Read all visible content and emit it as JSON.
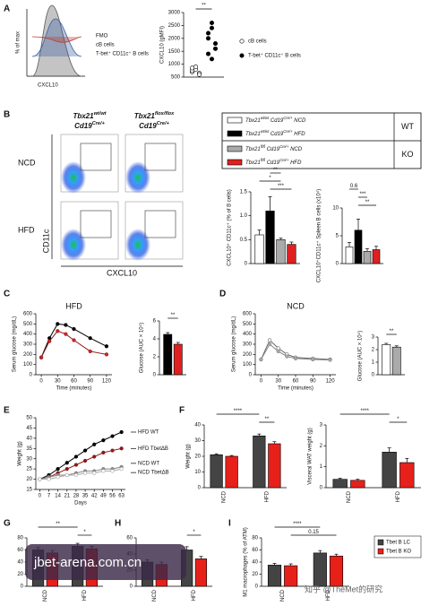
{
  "watermarks": [
    "jbet-arena.com.cn",
    "知乎 @TheMet的研究"
  ],
  "chart_data": [
    {
      "type": "density",
      "panel": "A",
      "ylabel": "% of max",
      "xlabel": "CXCL10",
      "series": [
        {
          "name": "FMO",
          "color": "#555555"
        },
        {
          "name": "cB cells",
          "color": "#3a5fa0"
        },
        {
          "name": "T-bet⁺ CD11c⁺ B cells",
          "color": "#c0392b"
        }
      ]
    },
    {
      "type": "dot",
      "ylabel": "CXCL10 (gMFI)",
      "ylim": [
        500,
        3000
      ],
      "yticks": [
        500,
        1000,
        1500,
        2000,
        2500,
        3000
      ],
      "annotations": [
        "**"
      ],
      "series": [
        {
          "name": "cB cells",
          "color": "#ffffff",
          "values": [
            700,
            800,
            650,
            750,
            900,
            600,
            850
          ]
        },
        {
          "name": "T-bet⁺ CD11c⁺ B cells",
          "color": "#000000",
          "values": [
            1400,
            2400,
            1800,
            2200,
            2600,
            1600,
            2000,
            1200
          ]
        }
      ]
    },
    {
      "type": "flow",
      "panel": "B",
      "xlabel": "CXCL10",
      "ylabel": "CD11c",
      "rows": [
        "NCD",
        "HFD"
      ],
      "columns": [
        [
          "Tbx21",
          "wt/wt",
          "",
          "",
          "Cd19",
          "Cre/+"
        ],
        [
          "Tbx21",
          "flox/flox",
          "",
          "",
          "Cd19",
          "Cre/+"
        ]
      ]
    },
    {
      "type": "legend",
      "groups": [
        "WT",
        "KO"
      ],
      "entries": [
        {
          "parts": [
            "Tbx21",
            "wt/wt",
            " Cd19",
            "Cre/+",
            " NCD"
          ],
          "color": "#ffffff"
        },
        {
          "parts": [
            "Tbx21",
            "wt/wt",
            " Cd19",
            "Cre/+",
            " HFD"
          ],
          "color": "#000000"
        },
        {
          "parts": [
            "Tbx21",
            "fl/fl",
            " Cd19",
            "Cre/+",
            " NCD"
          ],
          "color": "#aaaaaa"
        },
        {
          "parts": [
            "Tbx21",
            "fl/fl",
            " Cd19",
            "Cre/+",
            " HFD"
          ],
          "color": "#e02020"
        }
      ]
    },
    {
      "type": "bar",
      "ylabel": "CXCL10⁺ CD11c⁺ (% of B cells)",
      "ylim": [
        0,
        1.5
      ],
      "yticks": [
        0,
        0.5,
        {
          "value": 1,
          "label": "1.0"
        },
        1.5
      ],
      "values": [
        0.6,
        1.1,
        0.5,
        0.4
      ],
      "errors": [
        0.1,
        0.3,
        0.03,
        0.05
      ],
      "colors": [
        "#ffffff",
        "#000000",
        "#aaaaaa",
        "#e02020"
      ],
      "annotations": [
        "*",
        "**",
        "***"
      ]
    },
    {
      "type": "bar",
      "ylabel": "CXCL10⁺CD11c⁺ Spleen B cells (x10⁴)",
      "ylim": [
        0,
        10
      ],
      "yticks": [
        0,
        5,
        10
      ],
      "values": [
        3,
        6,
        2.2,
        2.5
      ],
      "errors": [
        0.8,
        2,
        0.5,
        0.6
      ],
      "colors": [
        "#ffffff",
        "#000000",
        "#aaaaaa",
        "#e02020"
      ],
      "annotations": [
        "0.6",
        "***",
        "**"
      ]
    },
    {
      "type": "line",
      "panel": "C",
      "title": "HFD",
      "ylabel": "Serum glucose (mg/dL)",
      "xlabel": "Time (minutes)",
      "x": [
        0,
        15,
        30,
        45,
        60,
        90,
        120
      ],
      "xlim": [
        -10,
        130
      ],
      "xticks": [
        0,
        30,
        60,
        90,
        120
      ],
      "ylim": [
        0,
        600
      ],
      "yticks": [
        0,
        100,
        200,
        300,
        400,
        500,
        600
      ],
      "series": [
        {
          "name": "WT",
          "color": "#000000",
          "line": "#000000",
          "values": [
            170,
            360,
            500,
            490,
            450,
            360,
            280
          ]
        },
        {
          "name": "KO",
          "color": "#e02020",
          "line": "#8b1a1a",
          "values": [
            170,
            330,
            430,
            400,
            340,
            230,
            200
          ]
        }
      ]
    },
    {
      "type": "bar",
      "ylabel": "Glucose (AUC × 10⁴)",
      "ylim": [
        0,
        6
      ],
      "yticks": [
        0,
        2,
        4,
        6
      ],
      "values": [
        4.5,
        3.4
      ],
      "errors": [
        0.2,
        0.2
      ],
      "colors": [
        "#000000",
        "#e02020"
      ],
      "annotations": [
        "**"
      ]
    },
    {
      "type": "line",
      "panel": "D",
      "title": "NCD",
      "ylabel": "Serum glucose (mg/dL)",
      "xlabel": "Time (minutes)",
      "x": [
        0,
        15,
        30,
        45,
        60,
        90,
        120
      ],
      "xlim": [
        -10,
        130
      ],
      "xticks": [
        0,
        30,
        60,
        90,
        120
      ],
      "ylim": [
        0,
        600
      ],
      "yticks": [
        0,
        100,
        200,
        300,
        400,
        500,
        600
      ],
      "series": [
        {
          "name": "WT",
          "color": "#ffffff",
          "line": "#666666",
          "values": [
            150,
            340,
            260,
            200,
            170,
            160,
            150
          ]
        },
        {
          "name": "KO",
          "color": "#aaaaaa",
          "line": "#888888",
          "values": [
            150,
            300,
            230,
            180,
            160,
            150,
            145
          ]
        }
      ]
    },
    {
      "type": "bar",
      "ylabel": "Glucose (AUC × 10⁴)",
      "ylim": [
        0,
        3
      ],
      "yticks": [
        0,
        1,
        2,
        3
      ],
      "values": [
        2.4,
        2.2
      ],
      "errors": [
        0.1,
        0.1
      ],
      "colors": [
        "#ffffff",
        "#aaaaaa"
      ],
      "annotations": [
        "**"
      ]
    },
    {
      "type": "line",
      "panel": "E",
      "ylabel": "Weight (g)",
      "xlabel": "Days",
      "x": [
        0,
        7,
        14,
        21,
        28,
        35,
        42,
        49,
        56,
        63
      ],
      "xlim": [
        -3,
        66
      ],
      "xticks": [
        0,
        7,
        14,
        21,
        28,
        35,
        42,
        49,
        56,
        63
      ],
      "ylim": [
        15,
        50
      ],
      "yticks": [
        15,
        20,
        25,
        30,
        35,
        40,
        45,
        50
      ],
      "series": [
        {
          "name": "HFD WT",
          "color": "#000000",
          "line": "#000000",
          "values": [
            20,
            22,
            25,
            28,
            31,
            34,
            37,
            39,
            41,
            43
          ]
        },
        {
          "name": "HFD TbetΔB",
          "color": "#8b1a1a",
          "line": "#8b1a1a",
          "values": [
            20,
            21,
            23,
            25,
            27,
            29,
            31,
            33,
            34,
            35
          ]
        },
        {
          "name": "NCD WT",
          "color": "#888888",
          "line": "#888888",
          "values": [
            20,
            21,
            22,
            22,
            23,
            24,
            24,
            25,
            25,
            26
          ]
        },
        {
          "name": "NCD TbetΔB",
          "color": "#ffffff",
          "line": "#aaaaaa",
          "values": [
            20,
            20,
            21,
            22,
            22,
            23,
            23,
            24,
            24,
            25
          ]
        }
      ]
    },
    {
      "type": "bar",
      "panel": "F",
      "ylabel": "Weight (g)",
      "ylim": [
        0,
        40
      ],
      "yticks": [
        0,
        10,
        20,
        30,
        40
      ],
      "groups": [
        "NCD",
        "HFD"
      ],
      "values": [
        21,
        20,
        33,
        28
      ],
      "errors": [
        0.6,
        0.5,
        1.2,
        1.3
      ],
      "colors": [
        "#444444",
        "#e8201a",
        "#444444",
        "#e8201a"
      ],
      "annotations": [
        "****",
        "**"
      ]
    },
    {
      "type": "bar",
      "ylabel": "Visceral WAT weight (g)",
      "ylim": [
        0,
        3
      ],
      "yticks": [
        0,
        1,
        2,
        3
      ],
      "groups": [
        "NCD",
        "HFD"
      ],
      "values": [
        0.4,
        0.35,
        1.7,
        1.2
      ],
      "errors": [
        0.05,
        0.05,
        0.2,
        0.2
      ],
      "colors": [
        "#444444",
        "#e8201a",
        "#444444",
        "#e8201a"
      ],
      "annotations": [
        "****",
        "*"
      ]
    },
    {
      "type": "bar",
      "panel": "G",
      "ylim": [
        0,
        80
      ],
      "yticks": [
        0,
        20,
        40,
        60,
        80
      ],
      "groups": [
        "NCD",
        "HFD"
      ],
      "values": [
        60,
        55,
        66,
        62
      ],
      "errors": [
        4,
        4,
        5,
        4
      ],
      "colors": [
        "#444444",
        "#e8201a",
        "#444444",
        "#e8201a"
      ],
      "annotations": [
        "**",
        "*"
      ]
    },
    {
      "type": "bar",
      "panel": "H",
      "ylim": [
        0,
        60
      ],
      "yticks": [
        0,
        20,
        40,
        60
      ],
      "groups": [
        "NCD",
        "HFD"
      ],
      "values": [
        30,
        27,
        45,
        34
      ],
      "errors": [
        3,
        3,
        4,
        3
      ],
      "colors": [
        "#444444",
        "#e8201a",
        "#444444",
        "#e8201a"
      ],
      "annotations": [
        "*"
      ]
    },
    {
      "type": "bar",
      "panel": "I",
      "ylabel": "M1 macrophages (% of ATM)",
      "ylim": [
        0,
        80
      ],
      "yticks": [
        0,
        20,
        40,
        60,
        80
      ],
      "groups": [
        "NCD",
        "HFD"
      ],
      "values": [
        35,
        34,
        55,
        50
      ],
      "errors": [
        3,
        3,
        4,
        3
      ],
      "colors": [
        "#444444",
        "#e8201a",
        "#444444",
        "#e8201a"
      ],
      "annotations": [
        "****",
        "0.15"
      ],
      "legend": [
        {
          "name": "Tbet B LC",
          "color": "#444444"
        },
        {
          "name": "Tbet B KO",
          "color": "#e8201a"
        }
      ]
    }
  ]
}
